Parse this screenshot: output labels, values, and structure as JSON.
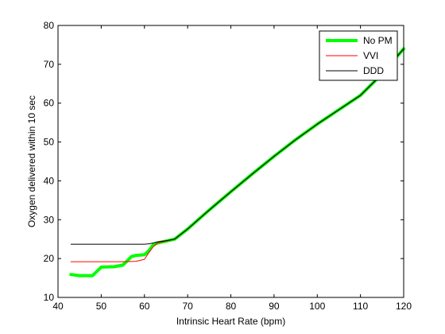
{
  "chart_data": {
    "type": "line",
    "xlabel": "Intrinsic Heart Rate (bpm)",
    "ylabel": "Oxygen delivered within 10 sec",
    "xlim": [
      40,
      120
    ],
    "ylim": [
      10,
      80
    ],
    "xticks": [
      40,
      50,
      60,
      70,
      80,
      90,
      100,
      110,
      120
    ],
    "yticks": [
      10,
      20,
      30,
      40,
      50,
      60,
      70,
      80
    ],
    "grid": false,
    "legend_position": "top-right",
    "series": [
      {
        "name": "No PM",
        "color": "#00ff00",
        "x": [
          43,
          45,
          48,
          50,
          53,
          55,
          57,
          58,
          60,
          61,
          62,
          63,
          65,
          67,
          70,
          75,
          80,
          85,
          90,
          95,
          100,
          105,
          110,
          115,
          120
        ],
        "y": [
          15.9,
          15.6,
          15.6,
          17.8,
          17.9,
          18.3,
          20.5,
          20.8,
          21.0,
          22.0,
          23.5,
          24.0,
          24.5,
          25.0,
          27.6,
          32.5,
          37.2,
          41.8,
          46.3,
          50.6,
          54.6,
          58.3,
          62.0,
          67.5,
          74.0
        ]
      },
      {
        "name": "VVI",
        "color": "#ff0000",
        "x": [
          43,
          50,
          55,
          58,
          60,
          61,
          62,
          63,
          65,
          67,
          70,
          75,
          80,
          85,
          90,
          95,
          100,
          105,
          110,
          115,
          120
        ],
        "y": [
          19.2,
          19.2,
          19.2,
          19.3,
          19.8,
          21.5,
          23.0,
          24.0,
          24.5,
          25.0,
          27.6,
          32.5,
          37.2,
          41.8,
          46.3,
          50.6,
          54.6,
          58.3,
          62.0,
          67.5,
          74.0
        ]
      },
      {
        "name": "DDD",
        "color": "#000000",
        "x": [
          43,
          50,
          55,
          60,
          61,
          62,
          63,
          65,
          67,
          70,
          75,
          80,
          85,
          90,
          95,
          100,
          105,
          110,
          115,
          120
        ],
        "y": [
          23.7,
          23.7,
          23.7,
          23.7,
          23.8,
          24.0,
          24.3,
          24.6,
          25.0,
          27.6,
          32.5,
          37.2,
          41.8,
          46.3,
          50.6,
          54.6,
          58.3,
          62.0,
          67.5,
          74.0
        ]
      }
    ]
  }
}
